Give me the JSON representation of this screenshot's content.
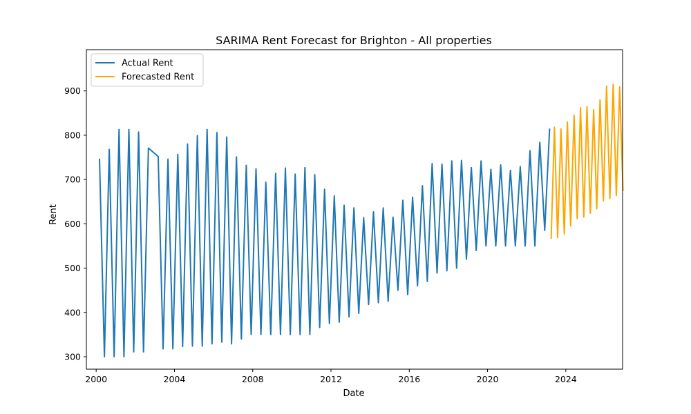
{
  "chart_data": {
    "type": "line",
    "title": "SARIMA Rent Forecast for Brighton - All properties",
    "xlabel": "Date",
    "ylabel": "Rent",
    "xlim": [
      1999.5,
      2026.9
    ],
    "ylim": [
      272,
      993
    ],
    "x_ticks": [
      2000,
      2004,
      2008,
      2012,
      2016,
      2020,
      2024
    ],
    "x_tick_labels": [
      "2000",
      "2004",
      "2008",
      "2012",
      "2016",
      "2020",
      "2024"
    ],
    "y_ticks": [
      300,
      400,
      500,
      600,
      700,
      800,
      900
    ],
    "y_tick_labels": [
      "300",
      "400",
      "500",
      "600",
      "700",
      "800",
      "900"
    ],
    "grid": false,
    "legend_position": "top-left",
    "series": [
      {
        "name": "Actual Rent",
        "color": "#1f77b4",
        "points": [
          [
            2000.17,
            747
          ],
          [
            2000.42,
            300
          ],
          [
            2000.67,
            768
          ],
          [
            2000.92,
            300
          ],
          [
            2001.17,
            813
          ],
          [
            2001.42,
            300
          ],
          [
            2001.67,
            813
          ],
          [
            2001.92,
            311
          ],
          [
            2002.17,
            807
          ],
          [
            2002.42,
            311
          ],
          [
            2002.67,
            771
          ],
          [
            2003.17,
            752
          ],
          [
            2003.42,
            318
          ],
          [
            2003.67,
            746
          ],
          [
            2003.92,
            318
          ],
          [
            2004.17,
            757
          ],
          [
            2004.42,
            323
          ],
          [
            2004.67,
            780
          ],
          [
            2004.92,
            324
          ],
          [
            2005.17,
            799
          ],
          [
            2005.42,
            324
          ],
          [
            2005.67,
            813
          ],
          [
            2005.92,
            329
          ],
          [
            2006.17,
            806
          ],
          [
            2006.42,
            333
          ],
          [
            2006.67,
            796
          ],
          [
            2006.92,
            329
          ],
          [
            2007.17,
            751
          ],
          [
            2007.42,
            340
          ],
          [
            2007.67,
            732
          ],
          [
            2007.92,
            350
          ],
          [
            2008.17,
            724
          ],
          [
            2008.42,
            350
          ],
          [
            2008.67,
            694
          ],
          [
            2008.92,
            350
          ],
          [
            2009.17,
            714
          ],
          [
            2009.42,
            350
          ],
          [
            2009.67,
            726
          ],
          [
            2009.92,
            350
          ],
          [
            2010.17,
            712
          ],
          [
            2010.42,
            350
          ],
          [
            2010.67,
            727
          ],
          [
            2010.92,
            350
          ],
          [
            2011.17,
            711
          ],
          [
            2011.42,
            366
          ],
          [
            2011.67,
            678
          ],
          [
            2011.92,
            375
          ],
          [
            2012.17,
            663
          ],
          [
            2012.42,
            378
          ],
          [
            2012.67,
            642
          ],
          [
            2012.92,
            390
          ],
          [
            2013.17,
            636
          ],
          [
            2013.42,
            398
          ],
          [
            2013.67,
            614
          ],
          [
            2013.92,
            418
          ],
          [
            2014.17,
            627
          ],
          [
            2014.42,
            422
          ],
          [
            2014.67,
            636
          ],
          [
            2014.92,
            425
          ],
          [
            2015.17,
            615
          ],
          [
            2015.42,
            450
          ],
          [
            2015.67,
            653
          ],
          [
            2015.92,
            440
          ],
          [
            2016.17,
            660
          ],
          [
            2016.42,
            460
          ],
          [
            2016.67,
            686
          ],
          [
            2016.92,
            470
          ],
          [
            2017.17,
            736
          ],
          [
            2017.42,
            489
          ],
          [
            2017.67,
            735
          ],
          [
            2017.92,
            494
          ],
          [
            2018.17,
            742
          ],
          [
            2018.42,
            500
          ],
          [
            2018.67,
            743
          ],
          [
            2018.92,
            520
          ],
          [
            2019.17,
            727
          ],
          [
            2019.42,
            540
          ],
          [
            2019.67,
            742
          ],
          [
            2019.92,
            550
          ],
          [
            2020.17,
            723
          ],
          [
            2020.42,
            550
          ],
          [
            2020.67,
            733
          ],
          [
            2020.92,
            550
          ],
          [
            2021.17,
            721
          ],
          [
            2021.42,
            550
          ],
          [
            2021.67,
            729
          ],
          [
            2021.92,
            550
          ],
          [
            2022.17,
            765
          ],
          [
            2022.42,
            550
          ],
          [
            2022.67,
            784
          ],
          [
            2022.92,
            585
          ],
          [
            2023.17,
            815
          ]
        ]
      },
      {
        "name": "Forecasted Rent",
        "color": "#ffa500",
        "points": [
          [
            2023.25,
            566
          ],
          [
            2023.42,
            818
          ],
          [
            2023.58,
            569
          ],
          [
            2023.75,
            814
          ],
          [
            2023.92,
            577
          ],
          [
            2024.08,
            830
          ],
          [
            2024.25,
            595
          ],
          [
            2024.42,
            845
          ],
          [
            2024.58,
            612
          ],
          [
            2024.75,
            862
          ],
          [
            2024.92,
            615
          ],
          [
            2025.08,
            864
          ],
          [
            2025.25,
            624
          ],
          [
            2025.42,
            858
          ],
          [
            2025.58,
            634
          ],
          [
            2025.75,
            880
          ],
          [
            2025.92,
            652
          ],
          [
            2026.08,
            911
          ],
          [
            2026.25,
            657
          ],
          [
            2026.42,
            915
          ],
          [
            2026.58,
            664
          ],
          [
            2026.75,
            909
          ],
          [
            2026.92,
            674
          ]
        ]
      }
    ]
  }
}
